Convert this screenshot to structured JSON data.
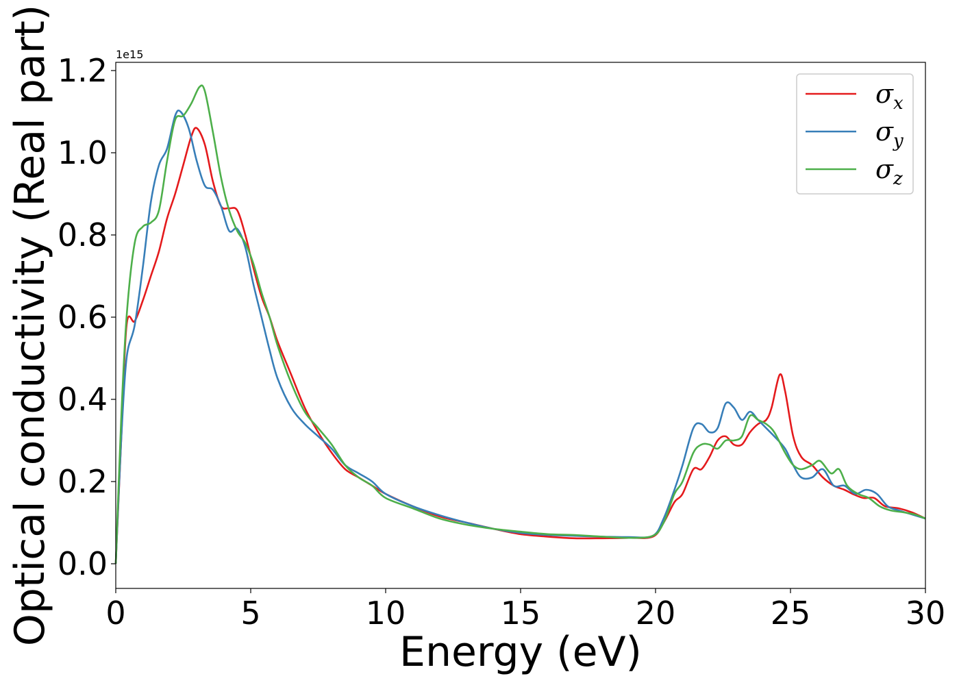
{
  "chart_data": {
    "type": "line",
    "title": "",
    "xlabel": "Energy (eV)",
    "ylabel": "Optical conductivity (Real part)",
    "y_offset_label": "1e15",
    "xlim": [
      0,
      30
    ],
    "ylim": [
      -0.06,
      1.22
    ],
    "x_ticks": [
      0,
      5,
      10,
      15,
      20,
      25,
      30
    ],
    "x_tick_labels": [
      "0",
      "5",
      "10",
      "15",
      "20",
      "25",
      "30"
    ],
    "y_ticks": [
      0.0,
      0.2,
      0.4,
      0.6,
      0.8,
      1.0,
      1.2
    ],
    "y_tick_labels": [
      "0.0",
      "0.2",
      "0.4",
      "0.6",
      "0.8",
      "1.0",
      "1.2"
    ],
    "grid": false,
    "legend_position": "top-right",
    "legend_entries": [
      {
        "symbol": "σ",
        "subscript": "x",
        "color": "#e41a1c"
      },
      {
        "symbol": "σ",
        "subscript": "y",
        "color": "#377eb8"
      },
      {
        "symbol": "σ",
        "subscript": "z",
        "color": "#4daf4a"
      }
    ],
    "series": [
      {
        "color": "#e41a1c",
        "points": [
          [
            0,
            0.0
          ],
          [
            0.2,
            0.3
          ],
          [
            0.4,
            0.58
          ],
          [
            0.7,
            0.59
          ],
          [
            1.0,
            0.64
          ],
          [
            1.3,
            0.7
          ],
          [
            1.6,
            0.76
          ],
          [
            1.9,
            0.84
          ],
          [
            2.2,
            0.9
          ],
          [
            2.5,
            0.97
          ],
          [
            2.8,
            1.04
          ],
          [
            3.0,
            1.06
          ],
          [
            3.3,
            1.02
          ],
          [
            3.6,
            0.93
          ],
          [
            3.9,
            0.87
          ],
          [
            4.2,
            0.865
          ],
          [
            4.5,
            0.86
          ],
          [
            4.8,
            0.8
          ],
          [
            5.1,
            0.72
          ],
          [
            5.4,
            0.65
          ],
          [
            5.7,
            0.6
          ],
          [
            6.0,
            0.54
          ],
          [
            6.5,
            0.46
          ],
          [
            7.0,
            0.38
          ],
          [
            7.5,
            0.32
          ],
          [
            8.0,
            0.27
          ],
          [
            8.5,
            0.23
          ],
          [
            9.0,
            0.21
          ],
          [
            9.5,
            0.19
          ],
          [
            10,
            0.17
          ],
          [
            11,
            0.14
          ],
          [
            12,
            0.115
          ],
          [
            13,
            0.1
          ],
          [
            14,
            0.085
          ],
          [
            15,
            0.072
          ],
          [
            16,
            0.066
          ],
          [
            17,
            0.062
          ],
          [
            18,
            0.062
          ],
          [
            19,
            0.063
          ],
          [
            19.9,
            0.066
          ],
          [
            20.3,
            0.1
          ],
          [
            20.7,
            0.15
          ],
          [
            21.0,
            0.17
          ],
          [
            21.4,
            0.23
          ],
          [
            21.7,
            0.23
          ],
          [
            22.0,
            0.26
          ],
          [
            22.3,
            0.3
          ],
          [
            22.6,
            0.31
          ],
          [
            22.9,
            0.29
          ],
          [
            23.2,
            0.29
          ],
          [
            23.5,
            0.32
          ],
          [
            23.8,
            0.34
          ],
          [
            24.1,
            0.35
          ],
          [
            24.3,
            0.38
          ],
          [
            24.6,
            0.46
          ],
          [
            24.8,
            0.42
          ],
          [
            25.1,
            0.31
          ],
          [
            25.4,
            0.26
          ],
          [
            25.8,
            0.24
          ],
          [
            26.2,
            0.21
          ],
          [
            26.6,
            0.19
          ],
          [
            27.0,
            0.18
          ],
          [
            27.3,
            0.17
          ],
          [
            27.7,
            0.16
          ],
          [
            28.1,
            0.16
          ],
          [
            28.5,
            0.14
          ],
          [
            29.0,
            0.135
          ],
          [
            29.5,
            0.125
          ],
          [
            30,
            0.11
          ]
        ]
      },
      {
        "color": "#377eb8",
        "points": [
          [
            0,
            0.0
          ],
          [
            0.2,
            0.3
          ],
          [
            0.4,
            0.5
          ],
          [
            0.7,
            0.58
          ],
          [
            1.0,
            0.72
          ],
          [
            1.3,
            0.88
          ],
          [
            1.6,
            0.97
          ],
          [
            1.9,
            1.01
          ],
          [
            2.2,
            1.09
          ],
          [
            2.4,
            1.1
          ],
          [
            2.7,
            1.06
          ],
          [
            3.0,
            0.98
          ],
          [
            3.3,
            0.92
          ],
          [
            3.6,
            0.91
          ],
          [
            3.9,
            0.87
          ],
          [
            4.2,
            0.81
          ],
          [
            4.5,
            0.815
          ],
          [
            4.8,
            0.77
          ],
          [
            5.1,
            0.68
          ],
          [
            5.4,
            0.6
          ],
          [
            5.7,
            0.52
          ],
          [
            6.0,
            0.45
          ],
          [
            6.5,
            0.38
          ],
          [
            7.0,
            0.34
          ],
          [
            7.5,
            0.31
          ],
          [
            8.0,
            0.28
          ],
          [
            8.5,
            0.24
          ],
          [
            9.0,
            0.22
          ],
          [
            9.5,
            0.2
          ],
          [
            10,
            0.17
          ],
          [
            11,
            0.14
          ],
          [
            12,
            0.118
          ],
          [
            13,
            0.1
          ],
          [
            14,
            0.085
          ],
          [
            15,
            0.075
          ],
          [
            16,
            0.07
          ],
          [
            17,
            0.068
          ],
          [
            18,
            0.066
          ],
          [
            19,
            0.065
          ],
          [
            19.9,
            0.068
          ],
          [
            20.3,
            0.11
          ],
          [
            20.7,
            0.18
          ],
          [
            21.0,
            0.24
          ],
          [
            21.4,
            0.33
          ],
          [
            21.7,
            0.34
          ],
          [
            22.0,
            0.32
          ],
          [
            22.3,
            0.33
          ],
          [
            22.6,
            0.39
          ],
          [
            22.9,
            0.38
          ],
          [
            23.2,
            0.35
          ],
          [
            23.5,
            0.37
          ],
          [
            23.8,
            0.35
          ],
          [
            24.1,
            0.33
          ],
          [
            24.4,
            0.31
          ],
          [
            24.8,
            0.28
          ],
          [
            25.1,
            0.24
          ],
          [
            25.4,
            0.21
          ],
          [
            25.8,
            0.21
          ],
          [
            26.2,
            0.23
          ],
          [
            26.6,
            0.19
          ],
          [
            27.0,
            0.19
          ],
          [
            27.4,
            0.17
          ],
          [
            27.8,
            0.18
          ],
          [
            28.2,
            0.17
          ],
          [
            28.6,
            0.14
          ],
          [
            29.0,
            0.13
          ],
          [
            29.5,
            0.12
          ],
          [
            30,
            0.11
          ]
        ]
      },
      {
        "color": "#4daf4a",
        "points": [
          [
            0,
            0.0
          ],
          [
            0.2,
            0.35
          ],
          [
            0.4,
            0.6
          ],
          [
            0.7,
            0.78
          ],
          [
            1.0,
            0.82
          ],
          [
            1.3,
            0.83
          ],
          [
            1.6,
            0.86
          ],
          [
            1.9,
            0.98
          ],
          [
            2.2,
            1.08
          ],
          [
            2.5,
            1.09
          ],
          [
            2.8,
            1.12
          ],
          [
            3.1,
            1.16
          ],
          [
            3.3,
            1.15
          ],
          [
            3.6,
            1.05
          ],
          [
            3.9,
            0.94
          ],
          [
            4.2,
            0.86
          ],
          [
            4.5,
            0.81
          ],
          [
            4.8,
            0.78
          ],
          [
            5.1,
            0.73
          ],
          [
            5.4,
            0.66
          ],
          [
            5.7,
            0.6
          ],
          [
            6.0,
            0.53
          ],
          [
            6.5,
            0.44
          ],
          [
            7.0,
            0.37
          ],
          [
            7.5,
            0.33
          ],
          [
            8.0,
            0.29
          ],
          [
            8.5,
            0.24
          ],
          [
            9.0,
            0.21
          ],
          [
            9.5,
            0.19
          ],
          [
            10,
            0.16
          ],
          [
            11,
            0.135
          ],
          [
            12,
            0.11
          ],
          [
            13,
            0.095
          ],
          [
            14,
            0.085
          ],
          [
            15,
            0.078
          ],
          [
            16,
            0.072
          ],
          [
            17,
            0.07
          ],
          [
            18,
            0.066
          ],
          [
            19,
            0.063
          ],
          [
            19.9,
            0.068
          ],
          [
            20.3,
            0.1
          ],
          [
            20.7,
            0.17
          ],
          [
            21.0,
            0.2
          ],
          [
            21.4,
            0.27
          ],
          [
            21.7,
            0.29
          ],
          [
            22.0,
            0.29
          ],
          [
            22.3,
            0.28
          ],
          [
            22.6,
            0.3
          ],
          [
            22.9,
            0.3
          ],
          [
            23.2,
            0.31
          ],
          [
            23.5,
            0.36
          ],
          [
            23.8,
            0.35
          ],
          [
            24.1,
            0.34
          ],
          [
            24.4,
            0.32
          ],
          [
            24.8,
            0.27
          ],
          [
            25.1,
            0.24
          ],
          [
            25.4,
            0.23
          ],
          [
            25.8,
            0.24
          ],
          [
            26.1,
            0.25
          ],
          [
            26.5,
            0.22
          ],
          [
            26.8,
            0.23
          ],
          [
            27.1,
            0.19
          ],
          [
            27.5,
            0.17
          ],
          [
            27.9,
            0.16
          ],
          [
            28.3,
            0.14
          ],
          [
            28.7,
            0.13
          ],
          [
            29.2,
            0.125
          ],
          [
            29.6,
            0.12
          ],
          [
            30,
            0.11
          ]
        ]
      }
    ]
  }
}
